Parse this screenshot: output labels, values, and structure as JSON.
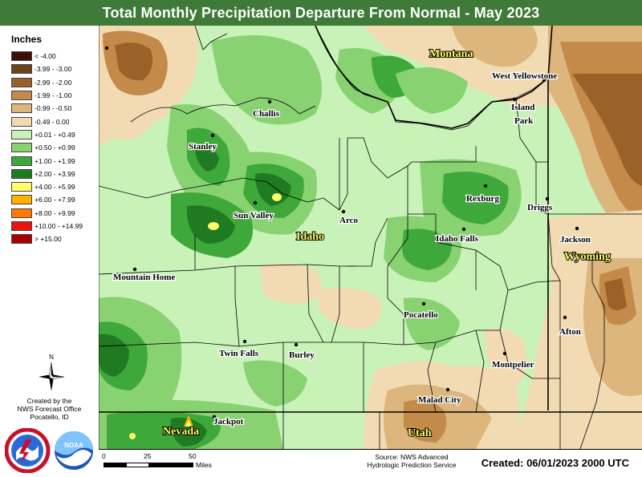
{
  "title": "Total Monthly Precipitation Departure From Normal - May 2023",
  "legend": {
    "title": "Inches",
    "items": [
      {
        "label": "< -4.00",
        "color": "#3b0f0a"
      },
      {
        "label": "-3.99 - -3.00",
        "color": "#6b4519"
      },
      {
        "label": "-2.99 - -2.00",
        "color": "#9a6228"
      },
      {
        "label": "-1.99 - -1.00",
        "color": "#c48a4a"
      },
      {
        "label": "-0.99 - -0.50",
        "color": "#dcb67c"
      },
      {
        "label": "-0.49 - 0.00",
        "color": "#f2dbb2"
      },
      {
        "label": "+0.01 - +0.49",
        "color": "#c8f2b8"
      },
      {
        "label": "+0.50 - +0.99",
        "color": "#88d272"
      },
      {
        "label": "+1.00 - +1.99",
        "color": "#3ea83a"
      },
      {
        "label": "+2.00 - +3.99",
        "color": "#1f7a22"
      },
      {
        "label": "+4.00 - +5.99",
        "color": "#ffff66"
      },
      {
        "label": "+6.00 - +7.99",
        "color": "#ffb000"
      },
      {
        "label": "+8.00 - +9.99",
        "color": "#ff7a00"
      },
      {
        "label": "+10.00 - +14.99",
        "color": "#ee1111"
      },
      {
        "label": "> +15.00",
        "color": "#a80000"
      }
    ]
  },
  "credit": [
    "Created by the",
    "NWS Forecast Office",
    "Pocatello, ID"
  ],
  "compass": "N",
  "scale": {
    "ticks": [
      "0",
      "25",
      "50"
    ],
    "unit": "Miles"
  },
  "source": [
    "Source: NWS Advanced",
    "Hydrologic Prediction Service"
  ],
  "created": "Created: 06/01/2023 2000 UTC",
  "map": {
    "states": [
      "Montana",
      "Idaho",
      "Wyoming",
      "Nevada",
      "Utah"
    ],
    "cities": [
      "West Yellowstone",
      "Island",
      "Park",
      "Challis",
      "Stanley",
      "Rexburg",
      "Driggs",
      "Sun Valley",
      "Arco",
      "Idaho Falls",
      "Jackson",
      "Mountain Home",
      "Pocatello",
      "Afton",
      "Twin Falls",
      "Burley",
      "Montpelier",
      "Malad City",
      "Jackpot"
    ]
  }
}
